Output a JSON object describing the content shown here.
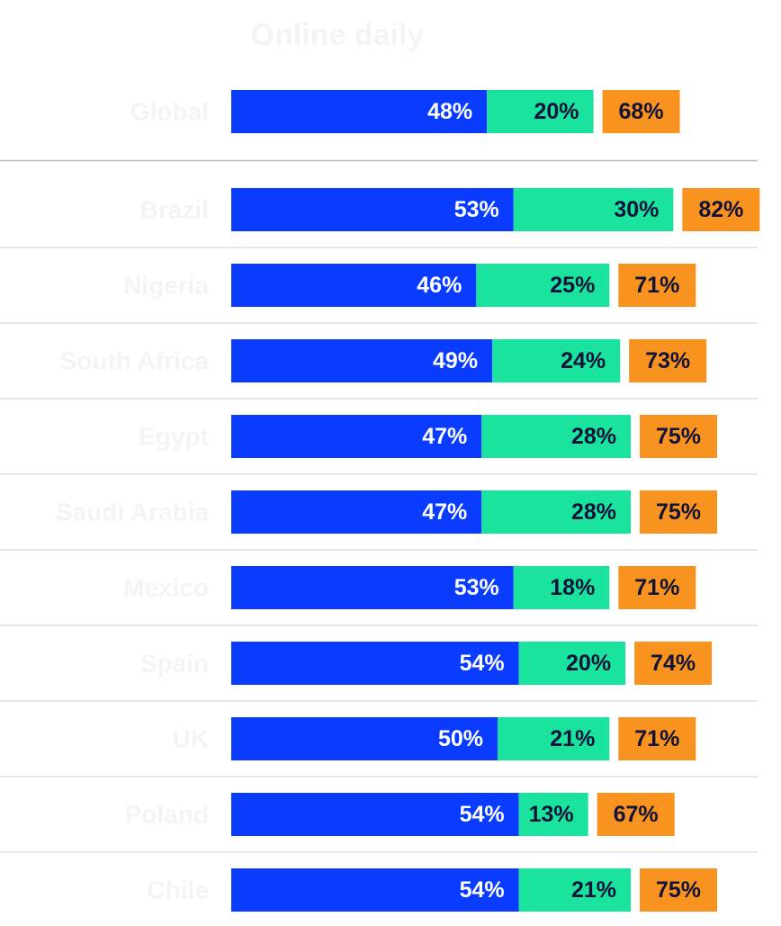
{
  "chart_data": {
    "type": "bar",
    "orientation": "horizontal",
    "stacked": true,
    "title": "Online daily",
    "categories": [
      "Global",
      "Brazil",
      "Nigeria",
      "South Africa",
      "Egypt",
      "Saudi Arabia",
      "Mexico",
      "Spain",
      "UK",
      "Poland",
      "Chile"
    ],
    "series": [
      {
        "values": [
          48,
          53,
          46,
          49,
          47,
          47,
          53,
          54,
          50,
          54,
          54
        ],
        "color": "#0a3cff"
      },
      {
        "values": [
          20,
          30,
          25,
          24,
          28,
          28,
          18,
          20,
          21,
          13,
          21
        ],
        "color": "#19e39c"
      }
    ],
    "totals": {
      "values": [
        68,
        82,
        71,
        73,
        75,
        75,
        71,
        74,
        71,
        67,
        75
      ],
      "color": "#f7931e"
    },
    "label_suffix": "%",
    "category_label_color": "#f4f4f6",
    "separator_color": "#cfcfd4",
    "label_text_color": "#12123a",
    "label_text_color_on_blue": "#ffffff"
  }
}
